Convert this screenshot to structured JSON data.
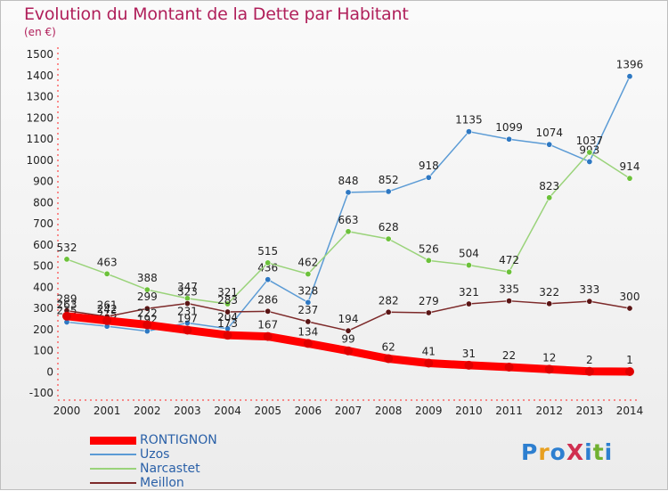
{
  "header": {
    "title": "Evolution du Montant de la Dette par Habitant",
    "unit": "(en €)"
  },
  "logo": {
    "text": "ProXiti",
    "colors": [
      "#2d7fd0",
      "#e8a020",
      "#2d7fd0",
      "#d03050",
      "#2d7fd0",
      "#70b030",
      "#2d7fd0"
    ]
  },
  "chart_data": {
    "type": "line",
    "title": "Evolution du Montant de la Dette par Habitant",
    "ylabel": "(en €)",
    "xlabel": "",
    "x": [
      2000,
      2001,
      2002,
      2003,
      2004,
      2005,
      2006,
      2007,
      2008,
      2009,
      2010,
      2011,
      2012,
      2013,
      2014
    ],
    "ylim": [
      -100,
      1500
    ],
    "yticks": [
      -100,
      0,
      100,
      200,
      300,
      400,
      500,
      600,
      700,
      800,
      900,
      1000,
      1100,
      1200,
      1300,
      1400,
      1500
    ],
    "grid": false,
    "legend_position": "bottom-left",
    "series": [
      {
        "name": "Uzos",
        "color": "#5b9bd5",
        "point_color": "#2e78c2",
        "values": [
          235,
          215,
          192,
          231,
          204,
          436,
          328,
          848,
          852,
          918,
          1135,
          1099,
          1074,
          993,
          1396
        ],
        "labels": [
          "235",
          "215",
          "192",
          "231",
          "204",
          "436",
          "328",
          "848",
          "852",
          "918",
          "1135",
          "1099",
          "1074",
          "993",
          "1396"
        ]
      },
      {
        "name": "Narcastet",
        "color": "#9ad37a",
        "point_color": "#6cc13a",
        "values": [
          532,
          463,
          388,
          347,
          321,
          515,
          462,
          663,
          628,
          526,
          504,
          472,
          823,
          1037,
          914
        ],
        "labels": [
          "532",
          "463",
          "388",
          "347",
          "321",
          "515",
          "462",
          "663",
          "628",
          "526",
          "504",
          "472",
          "823",
          "1037",
          "914"
        ]
      },
      {
        "name": "Meillon",
        "color": "#7d2a2a",
        "point_color": "#5a1515",
        "values": [
          289,
          261,
          299,
          323,
          283,
          286,
          237,
          194,
          282,
          279,
          321,
          335,
          322,
          333,
          300
        ],
        "labels": [
          "289",
          "261",
          "299",
          "323",
          "283",
          "286",
          "237",
          "194",
          "282",
          "279",
          "321",
          "335",
          "322",
          "333",
          "300"
        ]
      },
      {
        "name": "RONTIGNON",
        "color": "#ff0000",
        "point_color": "#e00000",
        "values": [
          263,
          242,
          222,
          197,
          173,
          167,
          134,
          99,
          62,
          41,
          31,
          22,
          12,
          2,
          1
        ],
        "labels": [
          "263",
          "242",
          "222",
          "197",
          "173",
          "167",
          "134",
          "99",
          "62",
          "41",
          "31",
          "22",
          "12",
          "2",
          "1"
        ]
      }
    ],
    "legend": [
      "RONTIGNON",
      "Uzos",
      "Narcastet",
      "Meillon"
    ]
  }
}
